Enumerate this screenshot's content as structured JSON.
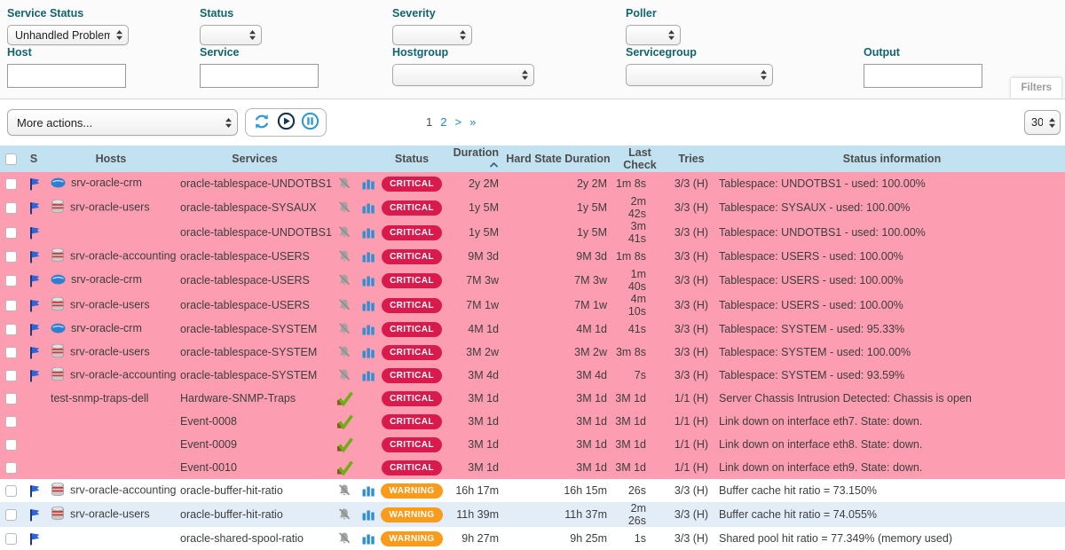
{
  "filters": {
    "service_status": {
      "label": "Service Status",
      "value": "Unhandled Problems"
    },
    "status": {
      "label": "Status",
      "value": ""
    },
    "severity": {
      "label": "Severity",
      "value": ""
    },
    "poller": {
      "label": "Poller",
      "value": ""
    },
    "host": {
      "label": "Host",
      "value": ""
    },
    "service": {
      "label": "Service",
      "value": ""
    },
    "hostgroup": {
      "label": "Hostgroup",
      "value": ""
    },
    "servicegroup": {
      "label": "Servicegroup",
      "value": ""
    },
    "output": {
      "label": "Output",
      "value": ""
    },
    "button_label": "Filters"
  },
  "toolbar": {
    "more_actions": "More actions...",
    "icon_names": [
      "refresh-icon",
      "play-icon",
      "pause-icon"
    ],
    "pagination": {
      "current": "1",
      "page_2": "2",
      "next": ">",
      "last": "»"
    },
    "page_size": "30"
  },
  "table": {
    "headers": {
      "s": "S",
      "hosts": "Hosts",
      "services": "Services",
      "status": "Status",
      "duration": "Duration",
      "hard_state_duration": "Hard State Duration",
      "last_check": "Last Check",
      "tries": "Tries",
      "status_information": "Status information"
    },
    "sort": {
      "column": "Duration",
      "direction": "asc"
    },
    "rows": [
      {
        "severity": "critical",
        "shade": "pink",
        "flag": true,
        "host_icon": "cloud-host-icon",
        "host": "srv-oracle-crm",
        "service": "oracle-tablespace-UNDOTBS1",
        "cell_icons": [
          "bell-muted-icon",
          "chart-icon"
        ],
        "status": "CRITICAL",
        "duration": "2y 2M",
        "hard_state_duration": "2y 2M",
        "last_check": "1m 8s",
        "tries": "3/3 (H)",
        "info": "Tablespace: UNDOTBS1 - used: 100.00%"
      },
      {
        "severity": "critical",
        "shade": "pink",
        "flag": true,
        "host_icon": "database-host-icon",
        "host": "srv-oracle-users",
        "service": "oracle-tablespace-SYSAUX",
        "cell_icons": [
          "bell-muted-icon",
          "chart-icon"
        ],
        "status": "CRITICAL",
        "duration": "1y 5M",
        "hard_state_duration": "1y 5M",
        "last_check": "2m 42s",
        "tries": "3/3 (H)",
        "info": "Tablespace: SYSAUX - used: 100.00%"
      },
      {
        "severity": "critical",
        "shade": "pink",
        "flag": true,
        "host_icon": null,
        "host": "",
        "service": "oracle-tablespace-UNDOTBS1",
        "cell_icons": [
          "bell-muted-icon",
          "chart-icon"
        ],
        "status": "CRITICAL",
        "duration": "1y 5M",
        "hard_state_duration": "1y 5M",
        "last_check": "3m 41s",
        "tries": "3/3 (H)",
        "info": "Tablespace: UNDOTBS1 - used: 100.00%"
      },
      {
        "severity": "critical",
        "shade": "pink",
        "flag": true,
        "host_icon": "database-host-icon",
        "host": "srv-oracle-accounting",
        "service": "oracle-tablespace-USERS",
        "cell_icons": [
          "bell-muted-icon",
          "chart-icon"
        ],
        "status": "CRITICAL",
        "duration": "9M 3d",
        "hard_state_duration": "9M 3d",
        "last_check": "1m 8s",
        "tries": "3/3 (H)",
        "info": "Tablespace: USERS - used: 100.00%"
      },
      {
        "severity": "critical",
        "shade": "pink",
        "flag": true,
        "host_icon": "cloud-host-icon",
        "host": "srv-oracle-crm",
        "service": "oracle-tablespace-USERS",
        "cell_icons": [
          "bell-muted-icon",
          "chart-icon"
        ],
        "status": "CRITICAL",
        "duration": "7M 3w",
        "hard_state_duration": "7M 3w",
        "last_check": "1m 40s",
        "tries": "3/3 (H)",
        "info": "Tablespace: USERS - used: 100.00%"
      },
      {
        "severity": "critical",
        "shade": "pink",
        "flag": true,
        "host_icon": "database-host-icon",
        "host": "srv-oracle-users",
        "service": "oracle-tablespace-USERS",
        "cell_icons": [
          "bell-muted-icon",
          "chart-icon"
        ],
        "status": "CRITICAL",
        "duration": "7M 1w",
        "hard_state_duration": "7M 1w",
        "last_check": "4m 10s",
        "tries": "3/3 (H)",
        "info": "Tablespace: USERS - used: 100.00%"
      },
      {
        "severity": "critical",
        "shade": "pink",
        "flag": true,
        "host_icon": "cloud-host-icon",
        "host": "srv-oracle-crm",
        "service": "oracle-tablespace-SYSTEM",
        "cell_icons": [
          "bell-muted-icon",
          "chart-icon"
        ],
        "status": "CRITICAL",
        "duration": "4M 1d",
        "hard_state_duration": "4M 1d",
        "last_check": "41s",
        "tries": "3/3 (H)",
        "info": "Tablespace: SYSTEM - used: 95.33%"
      },
      {
        "severity": "critical",
        "shade": "pink",
        "flag": true,
        "host_icon": "database-host-icon",
        "host": "srv-oracle-users",
        "service": "oracle-tablespace-SYSTEM",
        "cell_icons": [
          "bell-muted-icon",
          "chart-icon"
        ],
        "status": "CRITICAL",
        "duration": "3M 2w",
        "hard_state_duration": "3M 2w",
        "last_check": "3m 8s",
        "tries": "3/3 (H)",
        "info": "Tablespace: SYSTEM - used: 100.00%"
      },
      {
        "severity": "critical",
        "shade": "pink",
        "flag": true,
        "host_icon": "database-host-icon",
        "host": "srv-oracle-accounting",
        "service": "oracle-tablespace-SYSTEM",
        "cell_icons": [
          "bell-muted-icon",
          "chart-icon"
        ],
        "status": "CRITICAL",
        "duration": "3M 4d",
        "hard_state_duration": "3M 4d",
        "last_check": "7s",
        "tries": "3/3 (H)",
        "info": "Tablespace: SYSTEM - used: 93.59%"
      },
      {
        "severity": "critical",
        "shade": "pink",
        "flag": false,
        "host_icon": null,
        "host": "test-snmp-traps-dell",
        "service": "Hardware-SNMP-Traps",
        "cell_icons": [
          "passive-check-icon"
        ],
        "status": "CRITICAL",
        "duration": "3M 1d",
        "hard_state_duration": "3M 1d",
        "last_check": "3M 1d",
        "tries": "1/1 (H)",
        "info": "Server Chassis Intrusion Detected: Chassis is open"
      },
      {
        "severity": "critical",
        "shade": "pink",
        "flag": false,
        "host_icon": null,
        "host": "",
        "service": "Event-0008",
        "cell_icons": [
          "passive-check-icon"
        ],
        "status": "CRITICAL",
        "duration": "3M 1d",
        "hard_state_duration": "3M 1d",
        "last_check": "3M 1d",
        "tries": "1/1 (H)",
        "info": "Link down on interface eth7. State: down."
      },
      {
        "severity": "critical",
        "shade": "pink",
        "flag": false,
        "host_icon": null,
        "host": "",
        "service": "Event-0009",
        "cell_icons": [
          "passive-check-icon"
        ],
        "status": "CRITICAL",
        "duration": "3M 1d",
        "hard_state_duration": "3M 1d",
        "last_check": "3M 1d",
        "tries": "1/1 (H)",
        "info": "Link down on interface eth8. State: down."
      },
      {
        "severity": "critical",
        "shade": "pink",
        "flag": false,
        "host_icon": null,
        "host": "",
        "service": "Event-0010",
        "cell_icons": [
          "passive-check-icon"
        ],
        "status": "CRITICAL",
        "duration": "3M 1d",
        "hard_state_duration": "3M 1d",
        "last_check": "3M 1d",
        "tries": "1/1 (H)",
        "info": "Link down on interface eth9. State: down."
      },
      {
        "severity": "warning",
        "shade": "white",
        "flag": true,
        "host_icon": "database-host-icon",
        "host": "srv-oracle-accounting",
        "service": "oracle-buffer-hit-ratio",
        "cell_icons": [
          "bell-muted-icon",
          "chart-icon"
        ],
        "status": "WARNING",
        "duration": "16h 17m",
        "hard_state_duration": "16h 15m",
        "last_check": "26s",
        "tries": "3/3 (H)",
        "info": "Buffer cache hit ratio = 73.150%"
      },
      {
        "severity": "warning",
        "shade": "blue",
        "flag": true,
        "host_icon": "database-host-icon",
        "host": "srv-oracle-users",
        "service": "oracle-buffer-hit-ratio",
        "cell_icons": [
          "bell-muted-icon",
          "chart-icon"
        ],
        "status": "WARNING",
        "duration": "11h 39m",
        "hard_state_duration": "11h 37m",
        "last_check": "2m 26s",
        "tries": "3/3 (H)",
        "info": "Buffer cache hit ratio = 74.055%"
      },
      {
        "severity": "warning",
        "shade": "white",
        "flag": true,
        "host_icon": null,
        "host": "",
        "service": "oracle-shared-spool-ratio",
        "cell_icons": [
          "bell-muted-icon",
          "chart-icon"
        ],
        "status": "WARNING",
        "duration": "9h 27m",
        "hard_state_duration": "9h 25m",
        "last_check": "1s",
        "tries": "3/3 (H)",
        "info": "Shared pool hit ratio = 77.349% (memory used)"
      }
    ]
  },
  "colors": {
    "critical": "#d81b4c",
    "warning": "#fb9b1c",
    "table_header_bg": "#c3e2f1",
    "row_critical_bg": "#fc9db1",
    "row_warning_alt_bg": "#e2edf8",
    "link": "#1d86c8",
    "filter_label": "#11646e"
  }
}
